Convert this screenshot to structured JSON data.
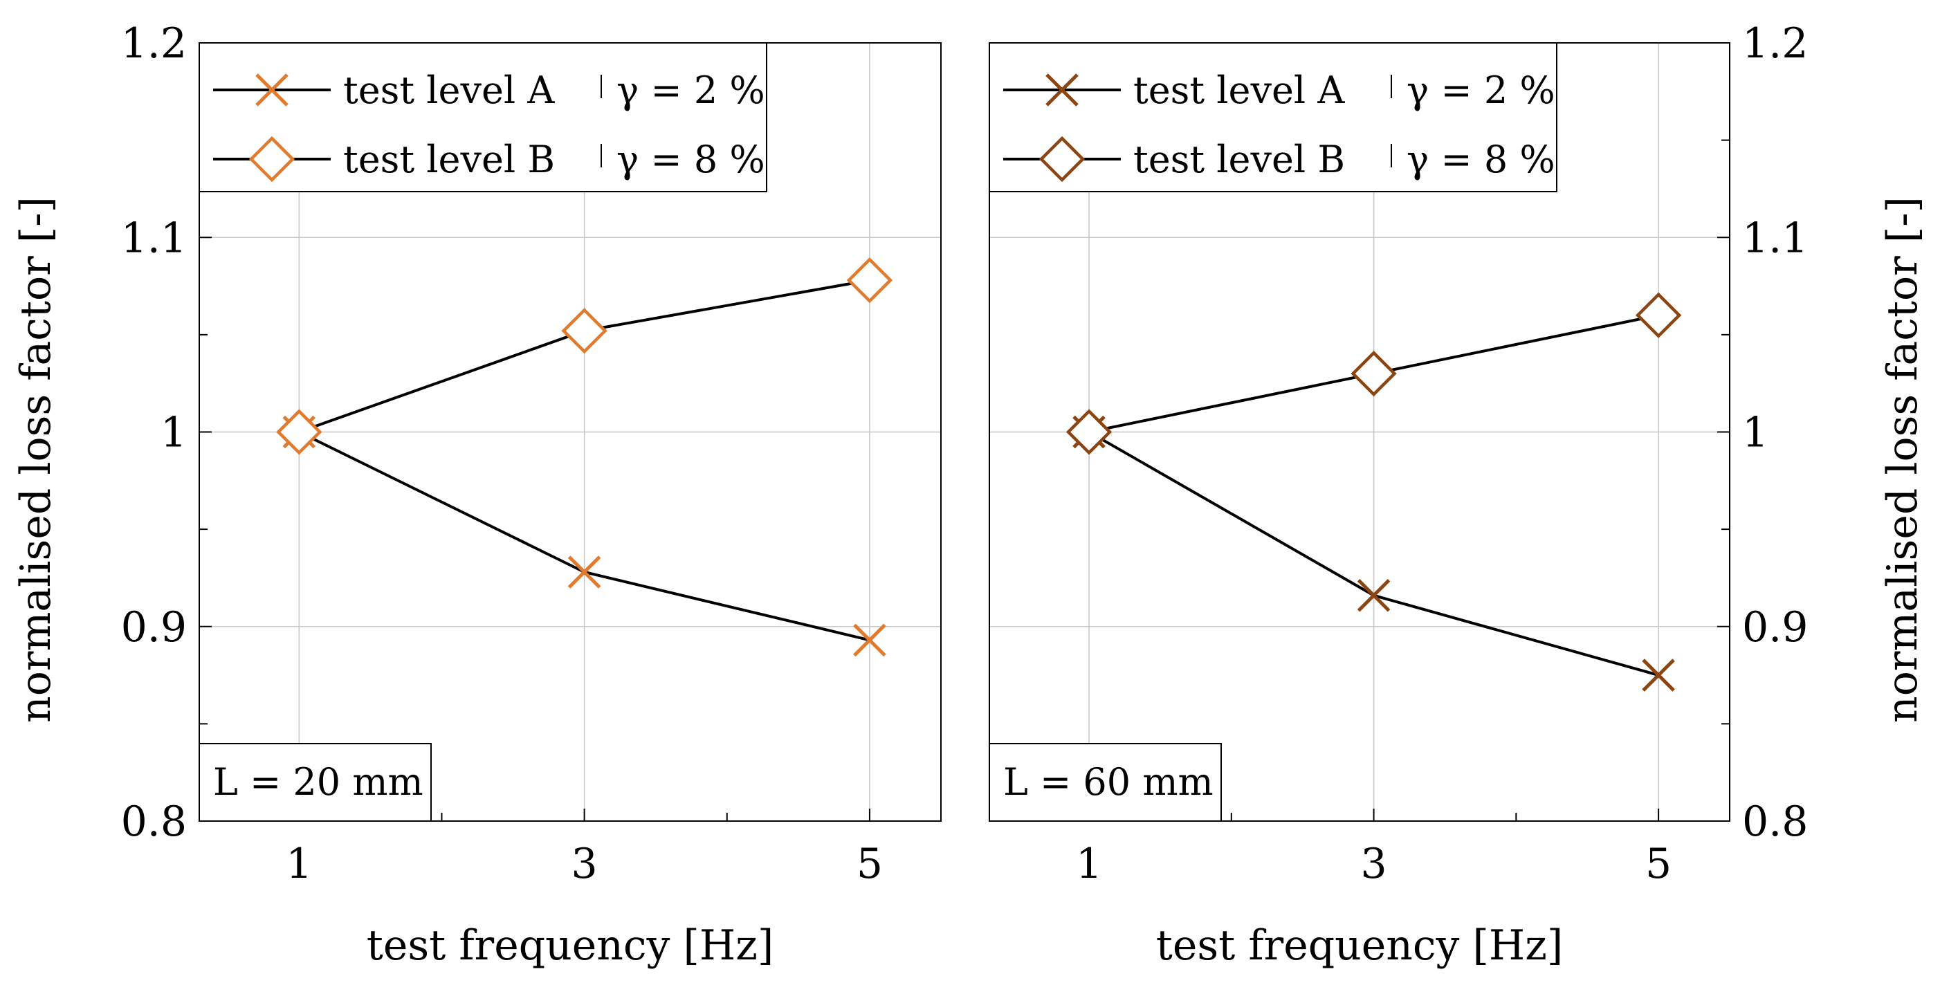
{
  "chart_data": [
    {
      "type": "line",
      "annotation": "L = 20 mm",
      "xlabel": "test frequency [Hz]",
      "ylabel": "normalised loss factor [-]",
      "x": [
        1,
        3,
        5
      ],
      "xticks": [
        "1",
        "3",
        "5"
      ],
      "xlim": [
        0.3,
        5.5
      ],
      "ylim": [
        0.8,
        1.2
      ],
      "yticks": [
        "0.8",
        "0.9",
        "1",
        "1.1",
        "1.2"
      ],
      "legend_position": "top-left",
      "marker_color": "#E07B2E",
      "series": [
        {
          "name": "test level A",
          "gamma_label": "γ = 2 %",
          "marker": "x",
          "values": [
            1.0,
            0.928,
            0.893
          ]
        },
        {
          "name": "test level B",
          "gamma_label": "γ = 8 %",
          "marker": "diamond",
          "values": [
            1.0,
            1.052,
            1.078
          ]
        }
      ]
    },
    {
      "type": "line",
      "annotation": "L = 60 mm",
      "xlabel": "test frequency [Hz]",
      "ylabel": "normalised loss factor [-]",
      "x": [
        1,
        3,
        5
      ],
      "xticks": [
        "1",
        "3",
        "5"
      ],
      "xlim": [
        0.3,
        5.5
      ],
      "ylim": [
        0.8,
        1.2
      ],
      "yticks": [
        "0.8",
        "0.9",
        "1",
        "1.1",
        "1.2"
      ],
      "legend_position": "top-left",
      "marker_color": "#8B4513",
      "series": [
        {
          "name": "test level A",
          "gamma_label": "γ = 2 %",
          "marker": "x",
          "values": [
            1.0,
            0.916,
            0.875
          ]
        },
        {
          "name": "test level B",
          "gamma_label": "γ = 8 %",
          "marker": "diamond",
          "values": [
            1.0,
            1.03,
            1.06
          ]
        }
      ]
    }
  ]
}
